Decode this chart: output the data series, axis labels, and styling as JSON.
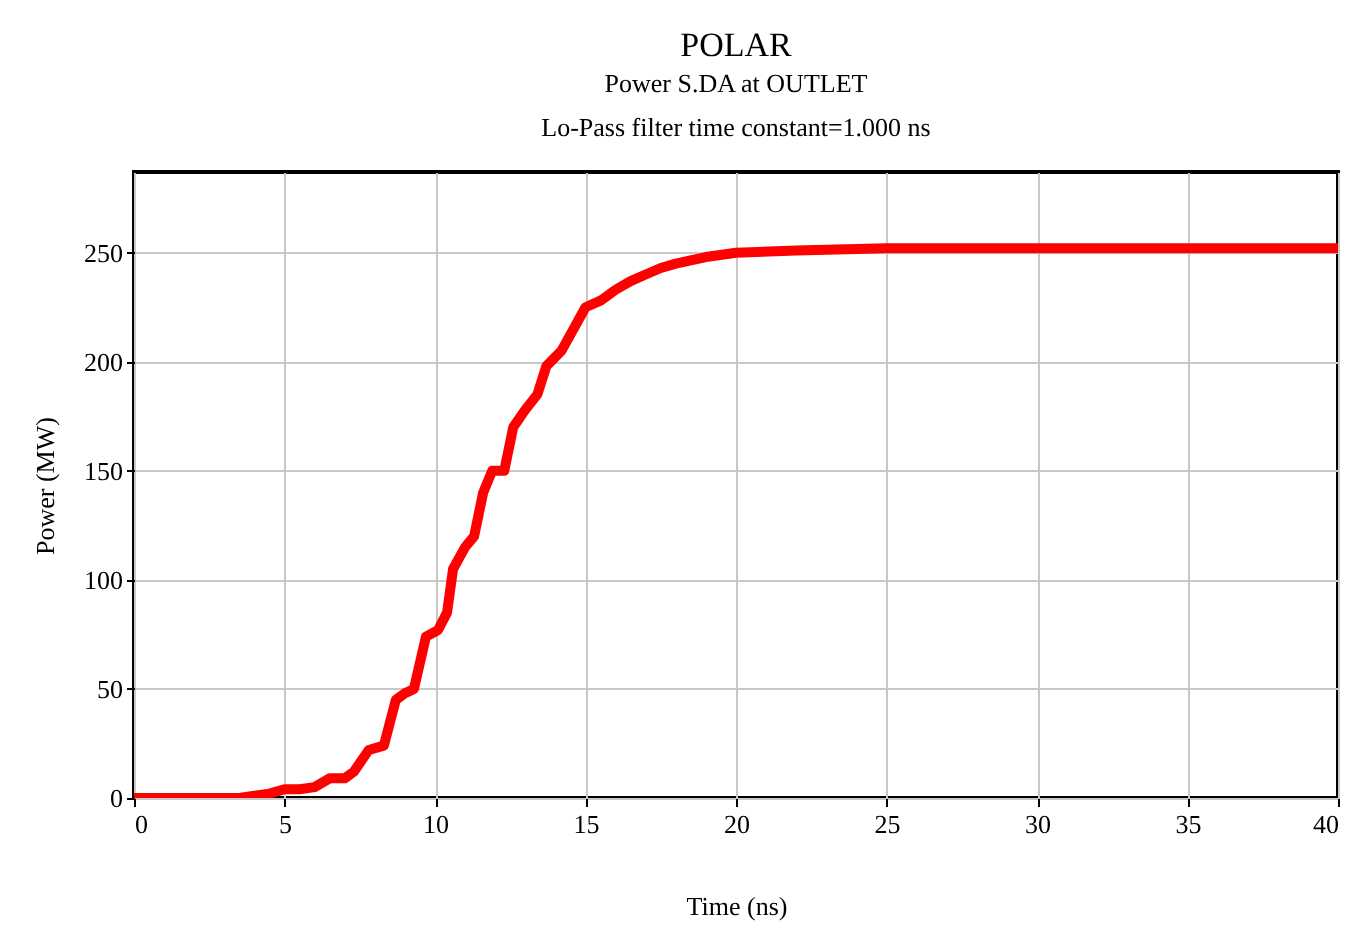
{
  "chart_data": {
    "type": "line",
    "title": "POLAR",
    "subtitle": "Power S.DA at OUTLET\nLo-Pass filter time constant=1.000 ns",
    "xlabel": "Time (ns)",
    "ylabel": "Power (MW)",
    "x": [
      0,
      1,
      2,
      3,
      3.5,
      4,
      4.5,
      5,
      5.5,
      6,
      6.5,
      7,
      7.3,
      7.8,
      8.3,
      8.7,
      9,
      9.3,
      9.7,
      10.1,
      10.4,
      10.6,
      11,
      11.3,
      11.6,
      11.9,
      12.3,
      12.6,
      13,
      13.4,
      13.7,
      14.2,
      14.6,
      15,
      15.5,
      16,
      16.5,
      17,
      17.5,
      18,
      19,
      20,
      22,
      25,
      30,
      35,
      40
    ],
    "series": [
      {
        "color": "#ff0000",
        "values": [
          0,
          0,
          0,
          0,
          0,
          1,
          2,
          4,
          4,
          5,
          9,
          9,
          12,
          22,
          24,
          45,
          48,
          50,
          74,
          77,
          85,
          105,
          115,
          120,
          140,
          150,
          150,
          170,
          178,
          185,
          198,
          205,
          215,
          225,
          228,
          233,
          237,
          240,
          243,
          245,
          248,
          250,
          251,
          252,
          252,
          252,
          252
        ]
      }
    ],
    "xlim": [
      0,
      40
    ],
    "xticks": [
      0,
      5,
      10,
      15,
      20,
      25,
      30,
      35,
      40
    ],
    "ylim": [
      0,
      287
    ],
    "yticks": [
      0,
      50,
      100,
      150,
      200,
      250
    ],
    "grid": true,
    "marker": "none",
    "line_style": "solid"
  }
}
